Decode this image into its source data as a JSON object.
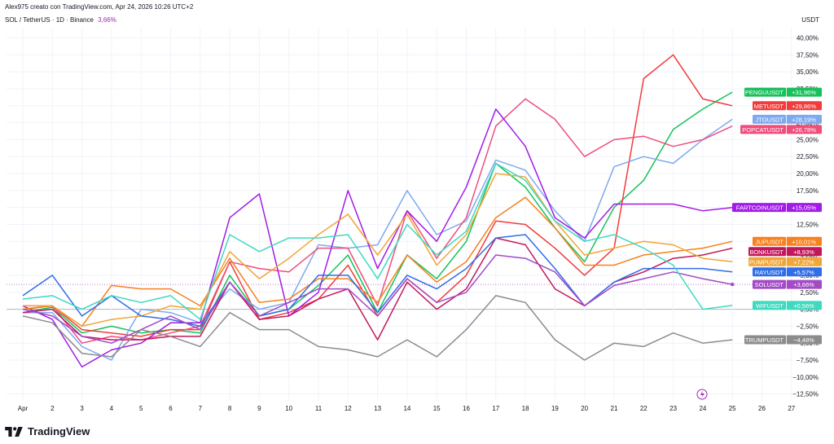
{
  "header": {
    "credit": "Alex975 creato con TradingView.com, Apr 24, 2026 10:26 UTC+2",
    "symbol": "SOL / TetherUS · 1D · Binance",
    "change": "3,66%",
    "currency": "USDT"
  },
  "brand": {
    "name": "TradingView"
  },
  "chart_data": {
    "type": "line",
    "x_labels": [
      "Apr",
      "2",
      "3",
      "4",
      "5",
      "6",
      "7",
      "8",
      "9",
      "10",
      "11",
      "12",
      "13",
      "14",
      "15",
      "16",
      "17",
      "18",
      "19",
      "20",
      "21",
      "22",
      "23",
      "24",
      "25",
      "26",
      "27"
    ],
    "y_ticks": [
      "40,00%",
      "37,50%",
      "35,00%",
      "32,50%",
      "30,00%",
      "27,50%",
      "25,00%",
      "22,50%",
      "20,00%",
      "17,50%",
      "15,00%",
      "12,50%",
      "10,00%",
      "7,50%",
      "5,00%",
      "2,50%",
      "0,00%",
      "−2,50%",
      "−5,00%",
      "−7,50%",
      "−10,00%",
      "−12,50%"
    ],
    "ylim": [
      -13.5,
      41.5
    ],
    "grid": true,
    "colors": {
      "grid": "#f0f3fa",
      "axis_text": "#131722",
      "zero_line": "#b2b5be"
    },
    "series": [
      {
        "name": "PENGUUSDT",
        "label": "+31,96%",
        "color": "#17c15a",
        "values": [
          -0.5,
          0.3,
          -3.5,
          -2.5,
          -3.5,
          -3.0,
          -3.5,
          5.0,
          -1.0,
          0.0,
          3.5,
          8.0,
          -0.5,
          8.0,
          4.5,
          10.0,
          21.5,
          18.0,
          12.0,
          7.0,
          15.0,
          19.0,
          26.5,
          29.5,
          32.0
        ]
      },
      {
        "name": "METUSDT",
        "label": "+29,86%",
        "color": "#f23b3b",
        "values": [
          0.0,
          0.5,
          -3.0,
          -3.5,
          -4.0,
          -3.0,
          -3.0,
          7.0,
          -1.5,
          -0.5,
          1.5,
          6.5,
          -1.0,
          4.5,
          1.0,
          5.0,
          13.0,
          12.5,
          9.0,
          5.0,
          9.0,
          34.0,
          37.5,
          31.0,
          30.0
        ]
      },
      {
        "name": "JTOUSDT",
        "label": "+28,19%",
        "color": "#7fa9ee",
        "values": [
          -0.5,
          -0.5,
          -5.5,
          -7.5,
          0.0,
          -0.5,
          -2.0,
          3.0,
          0.0,
          1.0,
          9.5,
          9.0,
          9.5,
          17.5,
          11.0,
          13.0,
          22.0,
          20.5,
          14.5,
          10.0,
          21.0,
          22.5,
          21.5,
          25.0,
          28.0
        ]
      },
      {
        "name": "POPCATUSDT",
        "label": "+26,78%",
        "color": "#ee4e7b",
        "values": [
          0.5,
          0.5,
          -5.0,
          -4.0,
          -4.5,
          -3.5,
          -2.5,
          7.0,
          6.0,
          5.5,
          9.0,
          9.0,
          0.5,
          14.5,
          7.5,
          13.5,
          27.0,
          31.0,
          28.0,
          22.5,
          25.0,
          25.5,
          24.0,
          25.0,
          27.0
        ]
      },
      {
        "name": "FARTCOINUSDT",
        "label": "+15,05%",
        "color": "#a21ce8",
        "values": [
          0.5,
          -1.5,
          -8.5,
          -6.0,
          -5.0,
          -2.0,
          -2.0,
          13.5,
          17.0,
          -1.0,
          2.5,
          17.5,
          6.0,
          14.5,
          10.0,
          18.0,
          29.5,
          24.0,
          13.5,
          10.5,
          15.5,
          15.5,
          15.5,
          14.5,
          15.0
        ]
      },
      {
        "name": "BONKUSDT",
        "label": "+8,93%",
        "color": "#c2185b",
        "values": [
          -0.5,
          0.0,
          -4.0,
          -4.5,
          -4.5,
          -4.0,
          -4.0,
          4.0,
          -1.5,
          -1.0,
          1.5,
          3.0,
          -4.5,
          4.0,
          0.0,
          3.0,
          10.5,
          9.5,
          3.0,
          0.5,
          4.0,
          5.5,
          7.5,
          8.0,
          9.0
        ]
      },
      {
        "name": "JUPUSDT",
        "label": "+10,01%",
        "color": "#f6811e",
        "values": [
          0.0,
          0.5,
          -2.5,
          3.5,
          3.0,
          3.0,
          0.5,
          7.5,
          1.0,
          1.5,
          4.5,
          4.5,
          1.0,
          8.0,
          4.0,
          7.0,
          13.5,
          16.5,
          12.0,
          6.5,
          6.5,
          8.0,
          8.5,
          9.0,
          10.0
        ]
      },
      {
        "name": "PUMPUSDT",
        "label": "+7,22%",
        "color": "#f0a638",
        "values": [
          0.5,
          0.5,
          -2.5,
          -1.5,
          -1.0,
          0.5,
          0.0,
          8.5,
          4.5,
          7.5,
          11.0,
          14.0,
          8.0,
          14.0,
          6.5,
          11.0,
          20.0,
          19.5,
          13.0,
          8.0,
          9.0,
          10.0,
          9.5,
          7.5,
          7.0
        ]
      },
      {
        "name": "RAYUSDT",
        "label": "+5,57%",
        "color": "#2f6ee8",
        "values": [
          2.0,
          5.0,
          -1.0,
          2.0,
          -1.0,
          -1.5,
          -2.5,
          4.0,
          -1.0,
          0.0,
          5.0,
          5.0,
          -0.5,
          5.0,
          3.0,
          6.0,
          10.5,
          11.0,
          6.0,
          0.5,
          4.0,
          6.0,
          6.0,
          6.0,
          5.5
        ]
      },
      {
        "name": "SOLUSDT",
        "label": "+3,66%",
        "color": "#a34bc7",
        "values": [
          0.0,
          -1.0,
          -4.0,
          -5.0,
          -3.0,
          -1.0,
          -3.0,
          4.0,
          -1.0,
          1.0,
          3.0,
          3.0,
          -1.0,
          4.5,
          1.0,
          2.5,
          8.0,
          7.5,
          5.5,
          0.5,
          3.5,
          4.5,
          5.5,
          4.5,
          3.66
        ]
      },
      {
        "name": "WIFUSDT",
        "label": "+0,56%",
        "color": "#3fd9c0",
        "values": [
          1.5,
          2.0,
          0.0,
          2.0,
          1.0,
          2.0,
          -1.5,
          11.0,
          8.5,
          10.5,
          10.5,
          11.0,
          4.5,
          12.5,
          8.0,
          11.5,
          21.5,
          19.0,
          13.0,
          10.0,
          11.0,
          9.0,
          6.5,
          0.0,
          0.56
        ]
      },
      {
        "name": "TRUMPUSDT",
        "label": "−4,48%",
        "color": "#8c8c8c",
        "values": [
          -1.0,
          -2.0,
          -6.5,
          -7.0,
          -3.0,
          -4.0,
          -5.5,
          -0.5,
          -3.0,
          -3.0,
          -5.5,
          -6.0,
          -7.0,
          -4.5,
          -7.0,
          -3.0,
          2.0,
          1.0,
          -4.5,
          -7.5,
          -5.0,
          -5.5,
          -3.5,
          -5.0,
          -4.5
        ]
      }
    ]
  }
}
